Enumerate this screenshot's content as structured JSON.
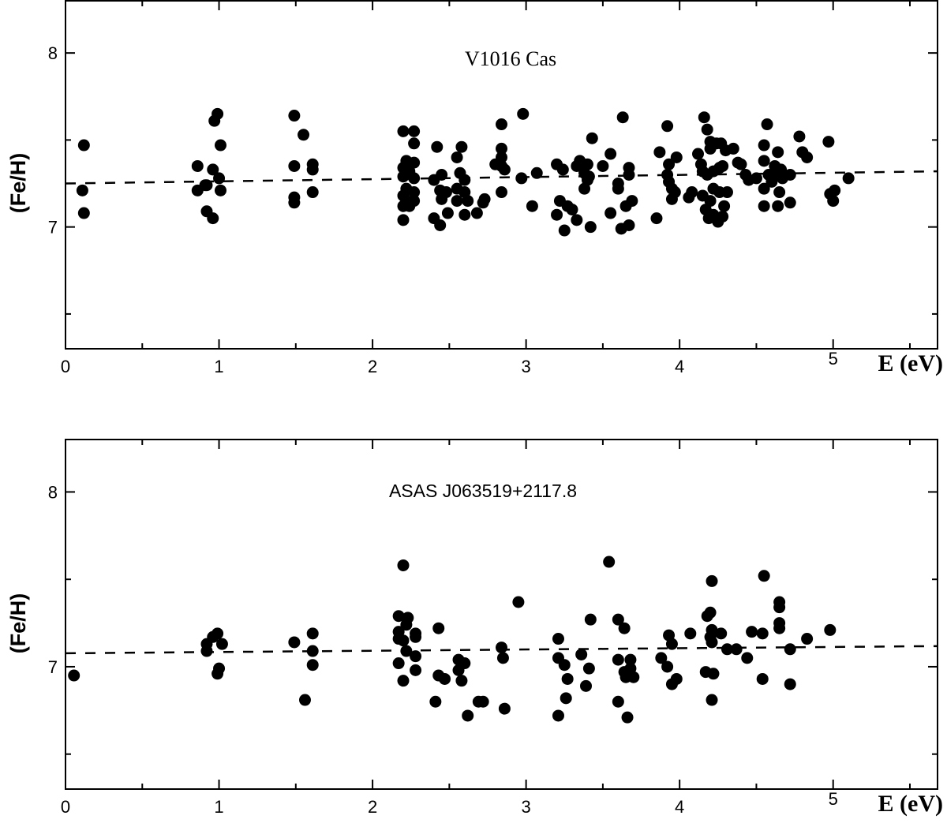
{
  "chart_data": [
    {
      "type": "scatter",
      "title": "V1016 Cas",
      "xlabel": "E (eV)",
      "ylabel": "(Fe/H)",
      "xlim": [
        0,
        5.68
      ],
      "ylim": [
        6.3,
        8.3
      ],
      "x_ticks": [
        "0",
        "1",
        "2",
        "3",
        "4",
        "5"
      ],
      "y_ticks": [
        "7",
        "8"
      ],
      "grid": false,
      "marker_color": "#000000",
      "fit_line": {
        "style": "dashed",
        "x": [
          0,
          5.68
        ],
        "y": [
          7.25,
          7.32
        ]
      },
      "points": [
        [
          0.12,
          7.47
        ],
        [
          0.11,
          7.21
        ],
        [
          0.12,
          7.08
        ],
        [
          0.86,
          7.35
        ],
        [
          0.86,
          7.21
        ],
        [
          0.92,
          7.24
        ],
        [
          0.92,
          7.09
        ],
        [
          0.96,
          7.05
        ],
        [
          0.96,
          7.33
        ],
        [
          0.97,
          7.61
        ],
        [
          0.99,
          7.65
        ],
        [
          1.0,
          7.28
        ],
        [
          1.01,
          7.21
        ],
        [
          1.01,
          7.47
        ],
        [
          0.91,
          7.24
        ],
        [
          1.49,
          7.64
        ],
        [
          1.55,
          7.53
        ],
        [
          1.49,
          7.35
        ],
        [
          1.49,
          7.17
        ],
        [
          1.49,
          7.14
        ],
        [
          1.61,
          7.36
        ],
        [
          1.61,
          7.33
        ],
        [
          1.61,
          7.2
        ],
        [
          2.2,
          7.55
        ],
        [
          2.27,
          7.55
        ],
        [
          2.27,
          7.48
        ],
        [
          2.22,
          7.38
        ],
        [
          2.27,
          7.37
        ],
        [
          2.2,
          7.34
        ],
        [
          2.24,
          7.32
        ],
        [
          2.2,
          7.29
        ],
        [
          2.27,
          7.28
        ],
        [
          2.22,
          7.22
        ],
        [
          2.27,
          7.2
        ],
        [
          2.2,
          7.18
        ],
        [
          2.22,
          7.15
        ],
        [
          2.27,
          7.15
        ],
        [
          2.2,
          7.12
        ],
        [
          2.24,
          7.12
        ],
        [
          2.2,
          7.04
        ],
        [
          2.42,
          7.46
        ],
        [
          2.45,
          7.3
        ],
        [
          2.4,
          7.27
        ],
        [
          2.44,
          7.21
        ],
        [
          2.48,
          7.2
        ],
        [
          2.45,
          7.16
        ],
        [
          2.4,
          7.05
        ],
        [
          2.44,
          7.01
        ],
        [
          2.49,
          7.08
        ],
        [
          2.58,
          7.46
        ],
        [
          2.55,
          7.4
        ],
        [
          2.57,
          7.31
        ],
        [
          2.6,
          7.27
        ],
        [
          2.55,
          7.22
        ],
        [
          2.6,
          7.2
        ],
        [
          2.55,
          7.15
        ],
        [
          2.62,
          7.15
        ],
        [
          2.6,
          7.07
        ],
        [
          2.68,
          7.08
        ],
        [
          2.73,
          7.16
        ],
        [
          2.72,
          7.14
        ],
        [
          2.84,
          7.59
        ],
        [
          2.84,
          7.45
        ],
        [
          2.84,
          7.4
        ],
        [
          2.84,
          7.35
        ],
        [
          2.86,
          7.33
        ],
        [
          2.84,
          7.2
        ],
        [
          2.8,
          7.36
        ],
        [
          2.98,
          7.65
        ],
        [
          2.97,
          7.28
        ],
        [
          3.04,
          7.12
        ],
        [
          3.07,
          7.31
        ],
        [
          3.2,
          7.36
        ],
        [
          3.24,
          7.33
        ],
        [
          3.22,
          7.15
        ],
        [
          3.2,
          7.07
        ],
        [
          3.27,
          7.12
        ],
        [
          3.25,
          6.98
        ],
        [
          3.3,
          7.1
        ],
        [
          3.33,
          7.35
        ],
        [
          3.35,
          7.38
        ],
        [
          3.38,
          7.31
        ],
        [
          3.41,
          7.29
        ],
        [
          3.4,
          7.36
        ],
        [
          3.43,
          7.51
        ],
        [
          3.4,
          7.27
        ],
        [
          3.38,
          7.22
        ],
        [
          3.42,
          7.0
        ],
        [
          3.33,
          7.04
        ],
        [
          3.55,
          7.42
        ],
        [
          3.55,
          7.08
        ],
        [
          3.5,
          7.35
        ],
        [
          3.6,
          7.25
        ],
        [
          3.63,
          7.63
        ],
        [
          3.6,
          7.22
        ],
        [
          3.65,
          7.12
        ],
        [
          3.67,
          7.34
        ],
        [
          3.67,
          7.3
        ],
        [
          3.62,
          6.99
        ],
        [
          3.67,
          7.01
        ],
        [
          3.69,
          7.15
        ],
        [
          3.85,
          7.05
        ],
        [
          3.87,
          7.43
        ],
        [
          3.92,
          7.58
        ],
        [
          3.92,
          7.3
        ],
        [
          3.93,
          7.36
        ],
        [
          3.95,
          7.22
        ],
        [
          3.98,
          7.4
        ],
        [
          3.97,
          7.2
        ],
        [
          3.95,
          7.16
        ],
        [
          3.93,
          7.26
        ],
        [
          4.06,
          7.17
        ],
        [
          4.08,
          7.2
        ],
        [
          4.12,
          7.42
        ],
        [
          4.14,
          7.36
        ],
        [
          4.16,
          7.63
        ],
        [
          4.18,
          7.56
        ],
        [
          4.2,
          7.49
        ],
        [
          4.2,
          7.45
        ],
        [
          4.24,
          7.48
        ],
        [
          4.27,
          7.48
        ],
        [
          4.3,
          7.44
        ],
        [
          4.15,
          7.32
        ],
        [
          4.18,
          7.3
        ],
        [
          4.22,
          7.32
        ],
        [
          4.26,
          7.34
        ],
        [
          4.28,
          7.35
        ],
        [
          4.15,
          7.18
        ],
        [
          4.2,
          7.15
        ],
        [
          4.22,
          7.22
        ],
        [
          4.17,
          7.1
        ],
        [
          4.19,
          7.05
        ],
        [
          4.22,
          7.07
        ],
        [
          4.25,
          7.03
        ],
        [
          4.28,
          7.06
        ],
        [
          4.29,
          7.12
        ],
        [
          4.26,
          7.2
        ],
        [
          4.31,
          7.2
        ],
        [
          4.35,
          7.45
        ],
        [
          4.38,
          7.37
        ],
        [
          4.4,
          7.36
        ],
        [
          4.43,
          7.3
        ],
        [
          4.45,
          7.27
        ],
        [
          4.5,
          7.28
        ],
        [
          4.55,
          7.47
        ],
        [
          4.57,
          7.59
        ],
        [
          4.55,
          7.38
        ],
        [
          4.55,
          7.22
        ],
        [
          4.55,
          7.12
        ],
        [
          4.58,
          7.3
        ],
        [
          4.62,
          7.3
        ],
        [
          4.6,
          7.26
        ],
        [
          4.62,
          7.35
        ],
        [
          4.64,
          7.43
        ],
        [
          4.66,
          7.33
        ],
        [
          4.67,
          7.28
        ],
        [
          4.65,
          7.2
        ],
        [
          4.64,
          7.12
        ],
        [
          4.72,
          7.14
        ],
        [
          4.72,
          7.3
        ],
        [
          4.78,
          7.52
        ],
        [
          4.8,
          7.43
        ],
        [
          4.83,
          7.4
        ],
        [
          4.97,
          7.49
        ],
        [
          4.98,
          7.19
        ],
        [
          5.0,
          7.15
        ],
        [
          5.01,
          7.21
        ],
        [
          5.1,
          7.28
        ]
      ]
    },
    {
      "type": "scatter",
      "title": "ASAS J063519+2117.8",
      "xlabel": "E (eV)",
      "ylabel": "(Fe/H)",
      "xlim": [
        0,
        5.68
      ],
      "ylim": [
        6.3,
        8.3
      ],
      "x_ticks": [
        "0",
        "1",
        "2",
        "3",
        "4",
        "5"
      ],
      "y_ticks": [
        "7",
        "8"
      ],
      "grid": false,
      "marker_color": "#000000",
      "fit_line": {
        "style": "dashed",
        "x": [
          0,
          5.68
        ],
        "y": [
          7.077,
          7.118
        ]
      },
      "points": [
        [
          0.055,
          6.95
        ],
        [
          0.92,
          7.13
        ],
        [
          0.92,
          7.09
        ],
        [
          0.96,
          7.17
        ],
        [
          0.99,
          7.19
        ],
        [
          1.02,
          7.13
        ],
        [
          1.0,
          6.99
        ],
        [
          0.99,
          6.96
        ],
        [
          1.49,
          7.14
        ],
        [
          1.61,
          7.19
        ],
        [
          1.61,
          7.09
        ],
        [
          1.61,
          7.01
        ],
        [
          1.56,
          6.81
        ],
        [
          2.2,
          7.58
        ],
        [
          2.17,
          7.29
        ],
        [
          2.23,
          7.28
        ],
        [
          2.22,
          7.24
        ],
        [
          2.17,
          7.2
        ],
        [
          2.17,
          7.16
        ],
        [
          2.2,
          7.15
        ],
        [
          2.28,
          7.19
        ],
        [
          2.28,
          7.17
        ],
        [
          2.22,
          7.09
        ],
        [
          2.28,
          7.06
        ],
        [
          2.17,
          7.02
        ],
        [
          2.28,
          6.98
        ],
        [
          2.2,
          6.92
        ],
        [
          2.43,
          7.22
        ],
        [
          2.43,
          6.95
        ],
        [
          2.47,
          6.93
        ],
        [
          2.41,
          6.8
        ],
        [
          2.56,
          7.04
        ],
        [
          2.6,
          7.02
        ],
        [
          2.56,
          6.98
        ],
        [
          2.58,
          6.92
        ],
        [
          2.62,
          6.72
        ],
        [
          2.69,
          6.8
        ],
        [
          2.72,
          6.8
        ],
        [
          2.84,
          7.11
        ],
        [
          2.85,
          7.05
        ],
        [
          2.86,
          6.76
        ],
        [
          2.95,
          7.37
        ],
        [
          3.54,
          7.6
        ],
        [
          3.21,
          7.16
        ],
        [
          3.21,
          7.05
        ],
        [
          3.25,
          7.01
        ],
        [
          3.27,
          6.93
        ],
        [
          3.26,
          6.82
        ],
        [
          3.21,
          6.72
        ],
        [
          3.36,
          7.07
        ],
        [
          3.41,
          6.99
        ],
        [
          3.39,
          6.89
        ],
        [
          3.42,
          7.27
        ],
        [
          3.6,
          7.27
        ],
        [
          3.64,
          7.22
        ],
        [
          3.6,
          7.04
        ],
        [
          3.68,
          7.04
        ],
        [
          3.64,
          6.97
        ],
        [
          3.68,
          6.99
        ],
        [
          3.65,
          6.94
        ],
        [
          3.7,
          6.94
        ],
        [
          3.6,
          6.8
        ],
        [
          3.66,
          6.71
        ],
        [
          3.88,
          7.05
        ],
        [
          3.92,
          7.0
        ],
        [
          3.98,
          6.93
        ],
        [
          3.95,
          6.9
        ],
        [
          3.93,
          7.18
        ],
        [
          3.95,
          7.13
        ],
        [
          4.07,
          7.19
        ],
        [
          4.21,
          7.49
        ],
        [
          4.2,
          7.31
        ],
        [
          4.18,
          7.29
        ],
        [
          4.21,
          7.21
        ],
        [
          4.2,
          7.17
        ],
        [
          4.21,
          7.14
        ],
        [
          4.27,
          7.19
        ],
        [
          4.31,
          7.1
        ],
        [
          4.37,
          7.1
        ],
        [
          4.44,
          7.05
        ],
        [
          4.17,
          6.97
        ],
        [
          4.22,
          6.96
        ],
        [
          4.21,
          6.81
        ],
        [
          4.47,
          7.2
        ],
        [
          4.54,
          7.19
        ],
        [
          4.55,
          7.52
        ],
        [
          4.54,
          6.93
        ],
        [
          4.65,
          7.37
        ],
        [
          4.65,
          7.34
        ],
        [
          4.65,
          7.25
        ],
        [
          4.65,
          7.22
        ],
        [
          4.72,
          7.1
        ],
        [
          4.72,
          6.9
        ],
        [
          4.83,
          7.16
        ],
        [
          4.98,
          7.21
        ]
      ]
    }
  ]
}
